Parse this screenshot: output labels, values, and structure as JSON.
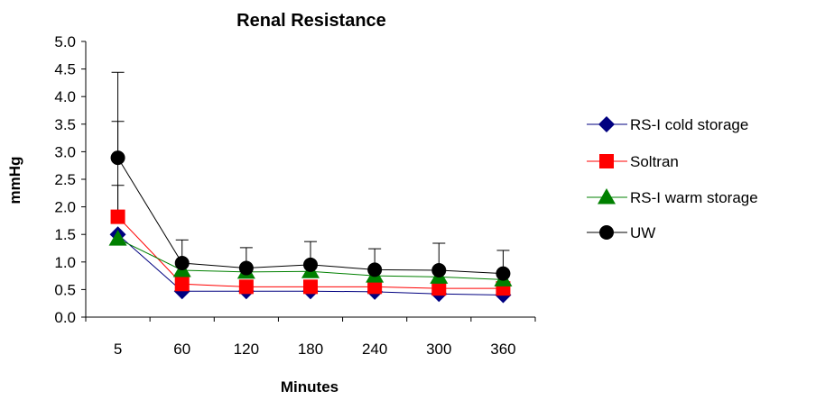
{
  "chart_data": {
    "type": "line",
    "title": "Renal Resistance",
    "xlabel": "Minutes",
    "ylabel": "mmHg",
    "categories": [
      "5",
      "60",
      "120",
      "180",
      "240",
      "300",
      "360"
    ],
    "yticks": [
      "0.0",
      "0.5",
      "1.0",
      "1.5",
      "2.0",
      "2.5",
      "3.0",
      "3.5",
      "4.0",
      "4.5",
      "5.0"
    ],
    "ylim": [
      0,
      5
    ],
    "grid": false,
    "legend_position": "right",
    "series": [
      {
        "name": "RS-I cold storage",
        "color": "#000080",
        "marker": "diamond",
        "values": [
          1.5,
          0.47,
          0.47,
          0.47,
          0.46,
          0.42,
          0.4
        ]
      },
      {
        "name": "Soltran",
        "color": "#ff0000",
        "marker": "square",
        "values": [
          1.82,
          0.6,
          0.55,
          0.55,
          0.55,
          0.52,
          0.52
        ]
      },
      {
        "name": "RS-I warm storage",
        "color": "#008000",
        "marker": "triangle",
        "values": [
          1.42,
          0.85,
          0.82,
          0.83,
          0.75,
          0.73,
          0.68
        ]
      },
      {
        "name": "UW",
        "color": "#000000",
        "marker": "circle",
        "values": [
          2.89,
          0.98,
          0.89,
          0.95,
          0.86,
          0.85,
          0.79
        ],
        "error_upper": [
          4.44,
          1.4,
          1.26,
          1.37,
          1.24,
          1.34,
          1.21
        ]
      }
    ],
    "extra_error_upper": [
      {
        "x": "5",
        "value": 3.55
      },
      {
        "x": "5",
        "value": 2.39
      }
    ]
  }
}
